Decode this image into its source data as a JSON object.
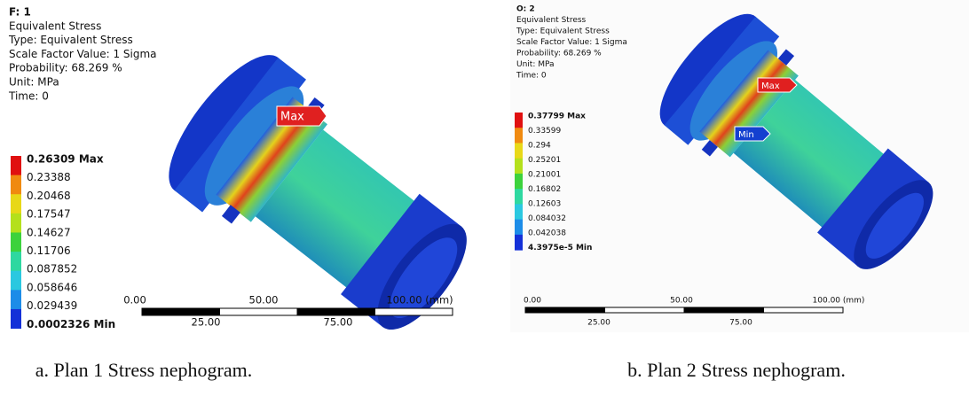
{
  "panels": [
    {
      "header": [
        "F: 1",
        "Equivalent Stress",
        "Type: Equivalent Stress",
        "Scale Factor Value: 1 Sigma",
        "Probability: 68.269 %",
        "Unit: MPa",
        "Time: 0"
      ],
      "legend": [
        "0.26309 Max",
        "0.23388",
        "0.20468",
        "0.17547",
        "0.14627",
        "0.11706",
        "0.087852",
        "0.058646",
        "0.029439",
        "0.0002326 Min"
      ],
      "markers": [
        "Max"
      ],
      "scale": {
        "top": [
          "0.00",
          "50.00",
          "100.00 (mm)"
        ],
        "bottom": [
          "25.00",
          "75.00"
        ]
      },
      "caption": "a. Plan 1 Stress nephogram."
    },
    {
      "header": [
        "O: 2",
        "Equivalent Stress",
        "Type: Equivalent Stress",
        "Scale Factor Value: 1 Sigma",
        "Probability: 68.269 %",
        "Unit: MPa",
        "Time: 0"
      ],
      "legend": [
        "0.37799 Max",
        "0.33599",
        "0.294",
        "0.25201",
        "0.21001",
        "0.16802",
        "0.12603",
        "0.084032",
        "0.042038",
        "4.3975e-5 Min"
      ],
      "markers": [
        "Max",
        "Min"
      ],
      "scale": {
        "top": [
          "0.00",
          "50.00",
          "100.00 (mm)"
        ],
        "bottom": [
          "25.00",
          "75.00"
        ]
      },
      "caption": "b. Plan 2 Stress nephogram."
    }
  ]
}
